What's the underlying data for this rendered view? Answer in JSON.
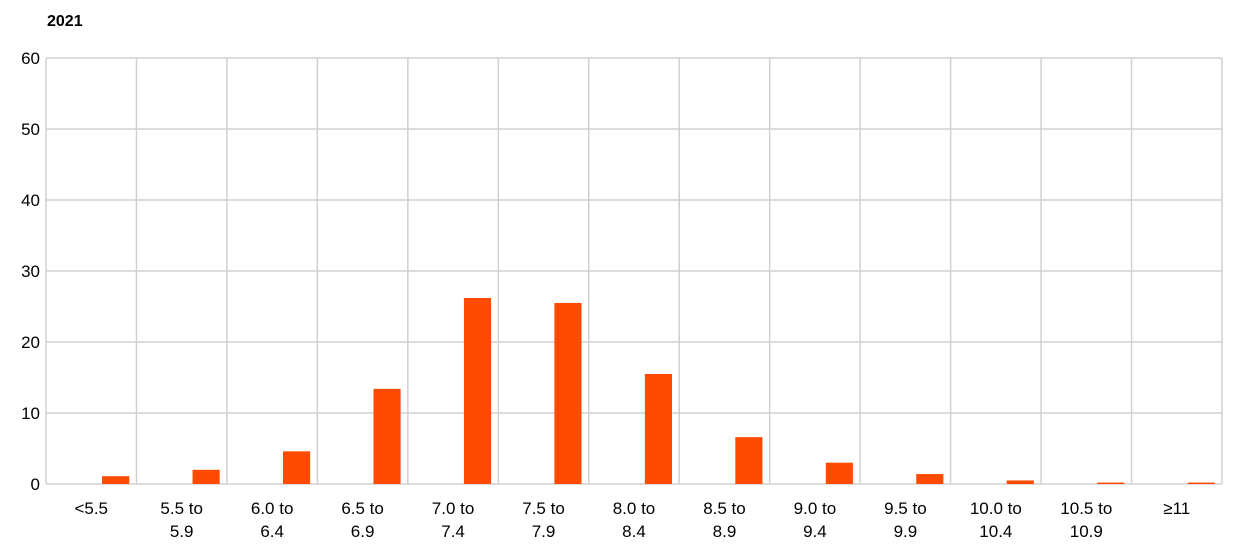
{
  "chart_data": {
    "type": "bar",
    "title": "2021",
    "categories": [
      "<5.5",
      "5.5 to 5.9",
      "6.0 to 6.4",
      "6.5 to 6.9",
      "7.0 to 7.4",
      "7.5 to 7.9",
      "8.0 to 8.4",
      "8.5 to 8.9",
      "9.0 to 9.4",
      "9.5 to 9.9",
      "10.0 to 10.4",
      "10.5 to 10.9",
      "≥11"
    ],
    "values": [
      1.1,
      2.0,
      4.6,
      13.4,
      26.2,
      25.5,
      15.5,
      6.6,
      3.0,
      1.4,
      0.5,
      0.2,
      0.2
    ],
    "color": "#ff4b00",
    "ylim": [
      0,
      60
    ],
    "yticks": [
      0,
      10,
      20,
      30,
      40,
      50,
      60
    ],
    "grid": true
  }
}
